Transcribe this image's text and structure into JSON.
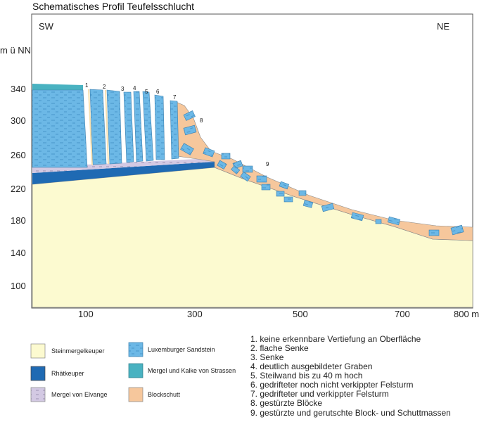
{
  "title": "Schematisches Profil Teufelsschlucht",
  "direction_left": "SW",
  "direction_right": "NE",
  "y_axis_label": "m ü NN",
  "y_ticks": [
    "340",
    "300",
    "260",
    "220",
    "180",
    "140",
    "100"
  ],
  "x_ticks": [
    "100",
    "300",
    "500",
    "700",
    "800 m"
  ],
  "profile_markers": [
    "1",
    "2",
    "3",
    "4",
    "5",
    "6",
    "7",
    "8",
    "9"
  ],
  "legend": [
    {
      "label": "Steinmergelkeuper",
      "color": "#fcfad0"
    },
    {
      "label": "Rhätkeuper",
      "color": "#1f6ab3"
    },
    {
      "label": "Mergel von Elvange",
      "color": "#d3c9e3"
    },
    {
      "label": "Luxemburger Sandstein",
      "color": "#6cb8e6"
    },
    {
      "label": "Mergel und Kalke von Strassen",
      "color": "#49b2c1"
    },
    {
      "label": "Blockschutt",
      "color": "#f6c79c"
    }
  ],
  "notes": [
    "1. keine erkennbare Vertiefung an Oberfläche",
    "2. flache Senke",
    "3. Senke",
    "4. deutlich ausgebildeter Graben",
    "5. Steilwand bis zu 40 m hoch",
    "6. gedrifteter noch nicht verkippter Felsturm",
    "7. gedrifteter und verkippter Felsturm",
    "8. gestürzte Blöcke",
    "9. gestürzte und gerutschte Block- und Schuttmassen"
  ]
}
